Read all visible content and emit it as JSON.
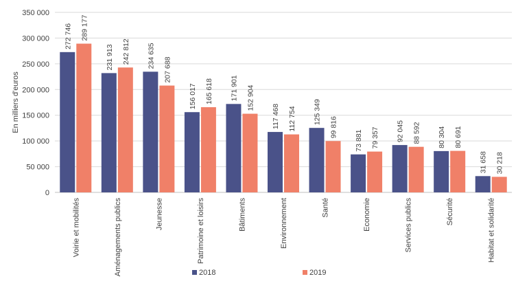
{
  "chart_data": {
    "type": "bar",
    "title": "",
    "xlabel": "",
    "ylabel": "En milliers d'euros",
    "ylim": [
      0,
      350000
    ],
    "yticks": [
      0,
      50000,
      100000,
      150000,
      200000,
      250000,
      300000,
      350000
    ],
    "ytick_labels": [
      "0",
      "50 000",
      "100 000",
      "150 000",
      "200 000",
      "250 000",
      "300 000",
      "350 000"
    ],
    "grid": true,
    "legend_position": "bottom",
    "categories": [
      "Voirie et mobilités",
      "Aménagements publics",
      "Jeunesse",
      "Patrimoine et loisirs",
      "Bâtiments",
      "Environnement",
      "Santé",
      "Economie",
      "Services publics",
      "Sécurité",
      "Habitat et solidarité"
    ],
    "series": [
      {
        "name": "2018",
        "color": "#4a5289",
        "values": [
          272746,
          231913,
          234635,
          156017,
          171901,
          117468,
          125349,
          73881,
          92045,
          80304,
          31658
        ],
        "labels": [
          "272 746",
          "231 913",
          "234 635",
          "156 017",
          "171 901",
          "117 468",
          "125 349",
          "73 881",
          "92 045",
          "80 304",
          "31 658"
        ]
      },
      {
        "name": "2019",
        "color": "#f08068",
        "values": [
          289177,
          242812,
          207688,
          165618,
          152904,
          112754,
          99816,
          79357,
          88592,
          80691,
          30218
        ],
        "labels": [
          "289 177",
          "242 812",
          "207 688",
          "165 618",
          "152 904",
          "112 754",
          "99 816",
          "79 357",
          "88 592",
          "80 691",
          "30 218"
        ]
      }
    ]
  }
}
